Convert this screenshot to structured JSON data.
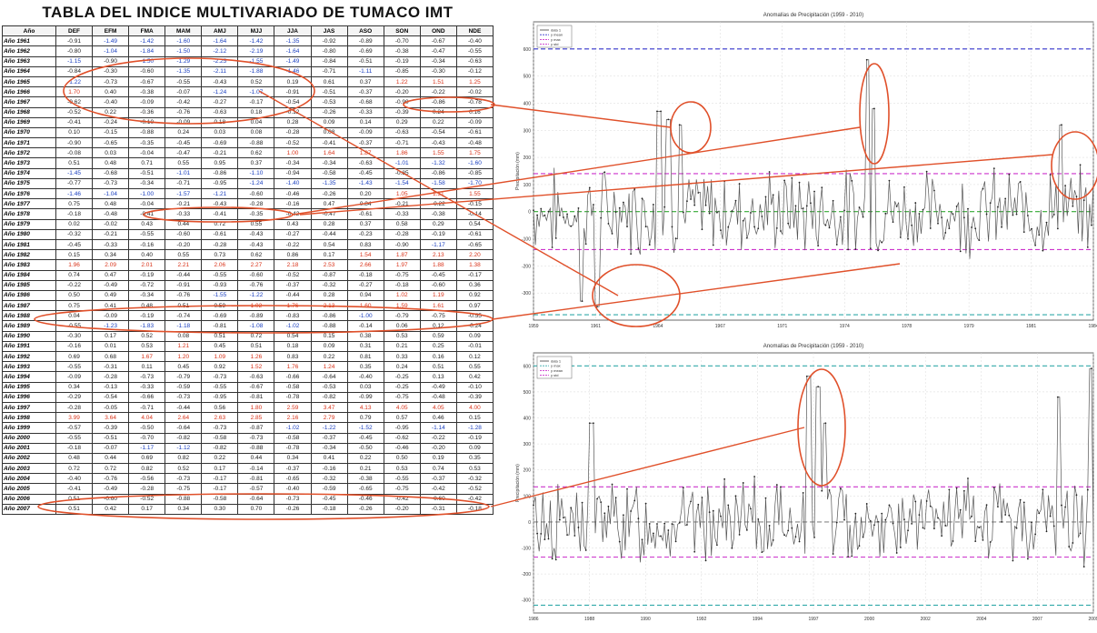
{
  "table": {
    "title": "TABLA DEL INDICE MULTIVARIADO DE TUMACO IMT",
    "headers": [
      "Año",
      "DEF",
      "EFM",
      "FMA",
      "MAM",
      "AMJ",
      "MJJ",
      "JJA",
      "JAS",
      "ASO",
      "SON",
      "OND",
      "NDE"
    ],
    "rows": [
      [
        "Año 1961",
        "-0.91",
        "-1.49",
        "-1.42",
        "-1.60",
        "-1.64",
        "-1.42",
        "-1.35",
        "-0.92",
        "-0.89",
        "-0.70",
        "-0.67",
        "-0.40"
      ],
      [
        "Año 1962",
        "-0.80",
        "-1.04",
        "-1.84",
        "-1.50",
        "-2.12",
        "-2.19",
        "-1.64",
        "-0.80",
        "-0.69",
        "-0.38",
        "-0.47",
        "-0.55"
      ],
      [
        "Año 1963",
        "-1.15",
        "-0.90",
        "-1.50",
        "-1.29",
        "-2.25",
        "-1.55",
        "-1.49",
        "-0.84",
        "-0.51",
        "-0.19",
        "-0.34",
        "-0.63"
      ],
      [
        "Año 1964",
        "-0.84",
        "-0.30",
        "-0.60",
        "-1.35",
        "-2.11",
        "-1.88",
        "-1.46",
        "-0.71",
        "-1.11",
        "-0.85",
        "-0.30",
        "-0.12"
      ],
      [
        "Año 1965",
        "-1.22",
        "-0.73",
        "-0.67",
        "-0.55",
        "-0.43",
        "0.52",
        "0.19",
        "0.61",
        "0.37",
        "1.22",
        "1.51",
        "1.25"
      ],
      [
        "Año 1966",
        "1.70",
        "0.40",
        "-0.38",
        "-0.07",
        "-1.24",
        "-1.07",
        "-0.91",
        "-0.51",
        "-0.37",
        "-0.20",
        "-0.22",
        "-0.02"
      ],
      [
        "Año 1967",
        "-0.62",
        "-0.40",
        "-0.09",
        "-0.42",
        "-0.27",
        "-0.17",
        "-0.54",
        "-0.53",
        "-0.68",
        "-0.90",
        "-0.86",
        "-0.78"
      ],
      [
        "Año 1968",
        "-0.52",
        "0.22",
        "-0.36",
        "-0.76",
        "-0.63",
        "0.18",
        "-0.12",
        "-0.26",
        "-0.33",
        "-0.39",
        "0.24",
        "0.16"
      ],
      [
        "Año 1969",
        "-0.41",
        "-0.24",
        "-0.10",
        "-0.09",
        "0.18",
        "0.04",
        "0.28",
        "0.09",
        "0.14",
        "0.29",
        "0.22",
        "-0.09"
      ],
      [
        "Año 1970",
        "0.10",
        "-0.15",
        "-0.88",
        "0.24",
        "0.03",
        "0.08",
        "-0.28",
        "0.08",
        "-0.09",
        "-0.63",
        "-0.54",
        "-0.61"
      ],
      [
        "Año 1971",
        "-0.90",
        "-0.65",
        "-0.35",
        "-0.45",
        "-0.69",
        "-0.88",
        "-0.52",
        "-0.41",
        "-0.37",
        "-0.71",
        "-0.43",
        "-0.48"
      ],
      [
        "Año 1972",
        "-0.08",
        "0.03",
        "-0.04",
        "-0.47",
        "-0.21",
        "0.62",
        "1.00",
        "1.64",
        "1.87",
        "1.86",
        "1.55",
        "1.75"
      ],
      [
        "Año 1973",
        "0.51",
        "0.48",
        "0.71",
        "0.55",
        "0.95",
        "0.37",
        "-0.34",
        "-0.34",
        "-0.63",
        "-1.01",
        "-1.32",
        "-1.60"
      ],
      [
        "Año 1974",
        "-1.45",
        "-0.68",
        "-0.51",
        "-1.01",
        "-0.86",
        "-1.10",
        "-0.94",
        "-0.58",
        "-0.45",
        "-0.85",
        "-0.86",
        "-0.85"
      ],
      [
        "Año 1975",
        "-0.77",
        "-0.73",
        "-0.34",
        "-0.71",
        "-0.95",
        "-1.24",
        "-1.40",
        "-1.35",
        "-1.43",
        "-1.54",
        "-1.58",
        "-1.70"
      ],
      [
        "Año 1976",
        "-1.46",
        "-1.04",
        "-1.00",
        "-1.57",
        "-1.21",
        "-0.60",
        "-0.46",
        "-0.26",
        "0.20",
        "1.05",
        "1.51",
        "1.55"
      ],
      [
        "Año 1977",
        "0.75",
        "0.48",
        "-0.04",
        "-0.21",
        "-0.43",
        "-0.28",
        "-0.16",
        "0.47",
        "0.84",
        "-0.21",
        "-0.22",
        "-0.15"
      ],
      [
        "Año 1978",
        "-0.18",
        "-0.48",
        "-0.41",
        "-0.33",
        "-0.41",
        "-0.35",
        "-0.42",
        "-0.47",
        "-0.61",
        "-0.33",
        "-0.38",
        "-0.14"
      ],
      [
        "Año 1979",
        "0.02",
        "-0.02",
        "0.43",
        "0.44",
        "0.72",
        "0.55",
        "0.43",
        "0.28",
        "0.37",
        "0.58",
        "0.29",
        "0.54"
      ],
      [
        "Año 1980",
        "-0.32",
        "-0.21",
        "-0.55",
        "-0.60",
        "-0.61",
        "-0.43",
        "-0.27",
        "-0.44",
        "-0.23",
        "-0.28",
        "-0.19",
        "-0.61"
      ],
      [
        "Año 1981",
        "-0.45",
        "-0.33",
        "-0.16",
        "-0.20",
        "-0.28",
        "-0.43",
        "-0.22",
        "0.54",
        "0.83",
        "-0.90",
        "-1.17",
        "-0.65"
      ],
      [
        "Año 1982",
        "0.15",
        "0.34",
        "0.40",
        "0.55",
        "0.73",
        "0.62",
        "0.86",
        "0.17",
        "1.54",
        "1.87",
        "2.13",
        "2.20"
      ],
      [
        "Año 1983",
        "1.96",
        "2.09",
        "2.01",
        "2.21",
        "2.06",
        "2.27",
        "2.18",
        "2.53",
        "2.66",
        "1.97",
        "1.88",
        "1.38"
      ],
      [
        "Año 1984",
        "0.74",
        "0.47",
        "-0.19",
        "-0.44",
        "-0.55",
        "-0.60",
        "-0.52",
        "-0.87",
        "-0.18",
        "-0.75",
        "-0.45",
        "-0.17"
      ],
      [
        "Año 1985",
        "-0.22",
        "-0.49",
        "-0.72",
        "-0.91",
        "-0.93",
        "-0.76",
        "-0.37",
        "-0.32",
        "-0.27",
        "-0.18",
        "-0.60",
        "0.36"
      ],
      [
        "Año 1986",
        "0.50",
        "0.49",
        "-0.34",
        "-0.76",
        "-1.55",
        "-1.22",
        "-0.44",
        "0.28",
        "0.94",
        "1.02",
        "1.19",
        "0.92"
      ],
      [
        "Año 1987",
        "0.75",
        "0.41",
        "0.48",
        "0.51",
        "0.59",
        "1.02",
        "1.76",
        "2.13",
        "1.60",
        "1.59",
        "1.61",
        "0.97"
      ],
      [
        "Año 1988",
        "0.04",
        "-0.09",
        "-0.19",
        "-0.74",
        "-0.69",
        "-0.89",
        "-0.83",
        "-0.86",
        "-1.00",
        "-0.79",
        "-0.75",
        "-0.55"
      ],
      [
        "Año 1989",
        "-0.55",
        "-1.23",
        "-1.83",
        "-1.18",
        "-0.81",
        "-1.08",
        "-1.02",
        "-0.88",
        "-0.14",
        "0.06",
        "0.12",
        "-0.24"
      ],
      [
        "Año 1990",
        "-0.30",
        "0.17",
        "0.52",
        "0.08",
        "0.51",
        "0.72",
        "0.54",
        "0.15",
        "0.38",
        "0.53",
        "0.59",
        "0.09"
      ],
      [
        "Año 1991",
        "-0.16",
        "0.01",
        "0.53",
        "1.21",
        "0.45",
        "0.51",
        "0.18",
        "0.09",
        "0.31",
        "0.21",
        "0.25",
        "-0.01"
      ],
      [
        "Año 1992",
        "0.69",
        "0.68",
        "1.67",
        "1.20",
        "1.09",
        "1.26",
        "0.83",
        "0.22",
        "0.81",
        "0.33",
        "0.16",
        "0.12"
      ],
      [
        "Año 1993",
        "-0.55",
        "-0.31",
        "0.11",
        "0.45",
        "0.92",
        "1.52",
        "1.76",
        "1.24",
        "0.35",
        "0.24",
        "0.51",
        "0.55"
      ],
      [
        "Año 1994",
        "-0.09",
        "-0.28",
        "-0.73",
        "-0.79",
        "-0.73",
        "-0.63",
        "-0.66",
        "-0.64",
        "-0.40",
        "-0.25",
        "0.13",
        "0.42"
      ],
      [
        "Año 1995",
        "0.34",
        "-0.13",
        "-0.33",
        "-0.59",
        "-0.55",
        "-0.67",
        "-0.58",
        "-0.53",
        "0.03",
        "-0.25",
        "-0.49",
        "-0.10"
      ],
      [
        "Año 1996",
        "-0.29",
        "-0.54",
        "-0.66",
        "-0.73",
        "-0.95",
        "-0.81",
        "-0.78",
        "-0.82",
        "-0.99",
        "-0.75",
        "-0.48",
        "-0.39"
      ],
      [
        "Año 1997",
        "-0.28",
        "-0.05",
        "-0.71",
        "-0.44",
        "0.56",
        "1.80",
        "2.59",
        "3.47",
        "4.13",
        "4.05",
        "4.05",
        "4.00"
      ],
      [
        "Año 1998",
        "3.99",
        "3.64",
        "4.04",
        "2.64",
        "2.63",
        "2.85",
        "2.16",
        "2.79",
        "0.79",
        "0.57",
        "0.46",
        "0.15"
      ],
      [
        "Año 1999",
        "-0.57",
        "-0.39",
        "-0.50",
        "-0.64",
        "-0.73",
        "-0.87",
        "-1.02",
        "-1.22",
        "-1.52",
        "-0.95",
        "-1.14",
        "-1.28"
      ],
      [
        "Año 2000",
        "-0.55",
        "-0.51",
        "-0.70",
        "-0.82",
        "-0.58",
        "-0.73",
        "-0.58",
        "-0.37",
        "-0.45",
        "-0.62",
        "-0.22",
        "-0.19"
      ],
      [
        "Año 2001",
        "-0.18",
        "-0.07",
        "-1.17",
        "-1.12",
        "-0.82",
        "-0.88",
        "-0.78",
        "-0.34",
        "-0.50",
        "-0.46",
        "-0.20",
        "0.09"
      ],
      [
        "Año 2002",
        "0.48",
        "0.44",
        "0.69",
        "0.82",
        "0.22",
        "0.44",
        "0.34",
        "0.41",
        "0.22",
        "0.50",
        "0.19",
        "0.35"
      ],
      [
        "Año 2003",
        "0.72",
        "0.72",
        "0.82",
        "0.52",
        "0.17",
        "-0.14",
        "-0.37",
        "-0.16",
        "0.21",
        "0.53",
        "0.74",
        "0.53"
      ],
      [
        "Año 2004",
        "-0.40",
        "-0.76",
        "-0.56",
        "-0.73",
        "-0.17",
        "-0.81",
        "-0.65",
        "-0.32",
        "-0.38",
        "-0.55",
        "-0.37",
        "-0.32"
      ],
      [
        "Año 2005",
        "-0.41",
        "-0.49",
        "-0.28",
        "-0.75",
        "-0.17",
        "-0.57",
        "-0.40",
        "-0.59",
        "-0.65",
        "-0.75",
        "-0.42",
        "-0.52"
      ],
      [
        "Año 2006",
        "0.51",
        "-0.60",
        "-0.52",
        "-0.88",
        "-0.58",
        "-0.64",
        "-0.73",
        "-0.45",
        "-0.46",
        "-0.42",
        "-0.60",
        "-0.42"
      ],
      [
        "Año 2007",
        "0.51",
        "0.42",
        "0.17",
        "0.34",
        "0.30",
        "0.70",
        "-0.26",
        "-0.18",
        "-0.26",
        "-0.20",
        "-0.31",
        "-0.18"
      ]
    ]
  },
  "chart_data": [
    {
      "type": "line",
      "title": "Anomalías de Precipitación (1959 - 2010)",
      "xlabel": "",
      "ylabel": "Precipitación (mm)",
      "ylim": [
        -400,
        700
      ],
      "xlim": [
        1959,
        1988
      ],
      "x_ticks": [
        "1959",
        "1961",
        "1964",
        "1967",
        "1971",
        "1974",
        "1978",
        "1979",
        "1981",
        "1984"
      ],
      "y_ticks": [
        "-300",
        "-200",
        "-100",
        "0",
        "100",
        "200",
        "300",
        "400",
        "500",
        "600"
      ],
      "legend": [
        "data 1",
        "y mean",
        "y max",
        "y std"
      ],
      "legend_position": "top-left",
      "grid": true,
      "reference_lines": [
        {
          "name": "y max",
          "value": 600,
          "color": "#3333cc"
        },
        {
          "name": "y std",
          "value": 140,
          "color": "#cc33cc"
        },
        {
          "name": "y std",
          "value": -140,
          "color": "#cc33cc"
        },
        {
          "name": "y mean",
          "value": 0,
          "color": "#33aa33"
        },
        {
          "name": "y min",
          "value": -380,
          "color": "#33aaaa"
        }
      ],
      "series_seed": 7,
      "series_color": "#555555",
      "peaks": [
        {
          "x": 1965.5,
          "y": 370
        },
        {
          "x": 1966.0,
          "y": 340
        },
        {
          "x": 1966.6,
          "y": 320
        },
        {
          "x": 1976.3,
          "y": 560
        },
        {
          "x": 1976.6,
          "y": 380
        },
        {
          "x": 1986.3,
          "y": 320
        },
        {
          "x": 1961.5,
          "y": -330
        },
        {
          "x": 1962.3,
          "y": -350
        }
      ]
    },
    {
      "type": "line",
      "title": "Anomalías de Precipitación (1959 - 2010)",
      "xlabel": "",
      "ylabel": "Precipitación (mm)",
      "ylim": [
        -350,
        650
      ],
      "xlim": [
        1986,
        2010
      ],
      "x_ticks": [
        "1986",
        "1988",
        "1990",
        "1992",
        "1994",
        "1997",
        "2000",
        "2002",
        "2004",
        "2007",
        "2009"
      ],
      "y_ticks": [
        "-300",
        "-200",
        "-100",
        "0",
        "100",
        "200",
        "300",
        "400",
        "500",
        "600"
      ],
      "legend": [
        "data 1",
        "y max",
        "y mean",
        "y std"
      ],
      "legend_position": "top-left",
      "grid": true,
      "reference_lines": [
        {
          "name": "y max",
          "value": 600,
          "color": "#33aaaa"
        },
        {
          "name": "y std",
          "value": 135,
          "color": "#cc33cc"
        },
        {
          "name": "y std",
          "value": -135,
          "color": "#cc33cc"
        },
        {
          "name": "y mean",
          "value": 0,
          "color": "#888888"
        },
        {
          "name": "y min",
          "value": -320,
          "color": "#33aaaa"
        }
      ],
      "series_seed": 13,
      "series_color": "#555555",
      "peaks": [
        {
          "x": 1997.8,
          "y": 560
        },
        {
          "x": 1998.2,
          "y": 520
        },
        {
          "x": 1998.5,
          "y": 380
        },
        {
          "x": 2008.5,
          "y": 480
        },
        {
          "x": 2009.9,
          "y": 590
        },
        {
          "x": 1988.5,
          "y": 380
        }
      ]
    }
  ],
  "annotations": {
    "ellipse_color": "#e0502a",
    "connector_color": "#e0502a"
  }
}
